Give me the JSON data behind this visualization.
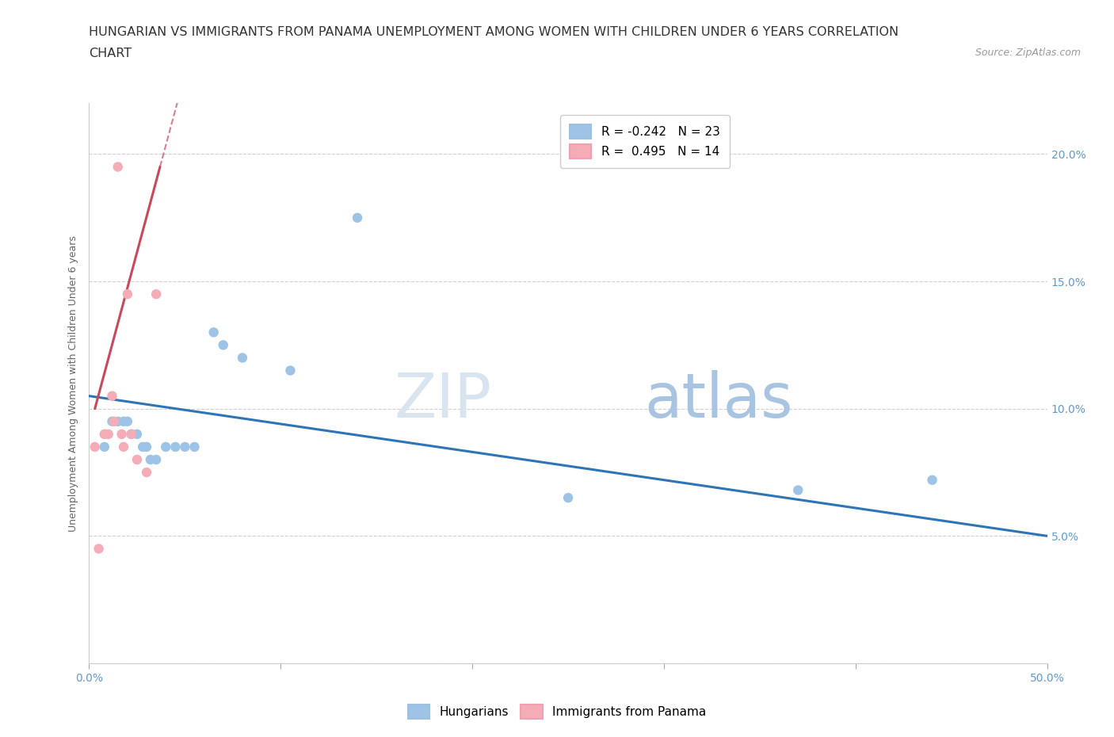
{
  "title_line1": "HUNGARIAN VS IMMIGRANTS FROM PANAMA UNEMPLOYMENT AMONG WOMEN WITH CHILDREN UNDER 6 YEARS CORRELATION",
  "title_line2": "CHART",
  "source": "Source: ZipAtlas.com",
  "ylabel": "Unemployment Among Women with Children Under 6 years",
  "xlim": [
    0,
    50
  ],
  "ylim": [
    0,
    22
  ],
  "blue_R": -0.242,
  "blue_N": 23,
  "pink_R": 0.495,
  "pink_N": 14,
  "blue_color": "#9dc3e6",
  "pink_color": "#f4acb7",
  "blue_line_color": "#2e75b6",
  "pink_line_color": "#c9485b",
  "watermark_zip": "ZIP",
  "watermark_atlas": "atlas",
  "blue_points_x": [
    0.8,
    1.2,
    1.5,
    1.8,
    2.0,
    2.2,
    2.5,
    2.8,
    3.0,
    3.2,
    3.5,
    4.0,
    4.5,
    5.0,
    5.5,
    6.5,
    7.0,
    8.0,
    10.5,
    14.0,
    25.0,
    37.0,
    44.0
  ],
  "blue_points_y": [
    8.5,
    9.5,
    9.5,
    9.5,
    9.5,
    9.0,
    9.0,
    8.5,
    8.5,
    8.0,
    8.0,
    8.5,
    8.5,
    8.5,
    8.5,
    13.0,
    12.5,
    12.0,
    11.5,
    17.5,
    6.5,
    6.8,
    7.2
  ],
  "pink_points_x": [
    0.3,
    0.5,
    0.8,
    1.0,
    1.2,
    1.3,
    1.5,
    1.7,
    1.8,
    2.0,
    2.2,
    2.5,
    3.0,
    3.5
  ],
  "pink_points_y": [
    8.5,
    4.5,
    9.0,
    9.0,
    10.5,
    9.5,
    19.5,
    9.0,
    8.5,
    14.5,
    9.0,
    8.0,
    7.5,
    14.5
  ],
  "blue_trendline_x": [
    0,
    50
  ],
  "blue_trendline_y": [
    10.5,
    5.0
  ],
  "pink_trendline_x": [
    0.3,
    3.7
  ],
  "pink_trendline_y": [
    10.0,
    19.5
  ],
  "background_color": "#ffffff",
  "grid_color": "#d0d0d0",
  "title_fontsize": 11.5,
  "axis_fontsize": 9,
  "tick_fontsize": 10,
  "legend_fontsize": 11,
  "point_size": 80
}
